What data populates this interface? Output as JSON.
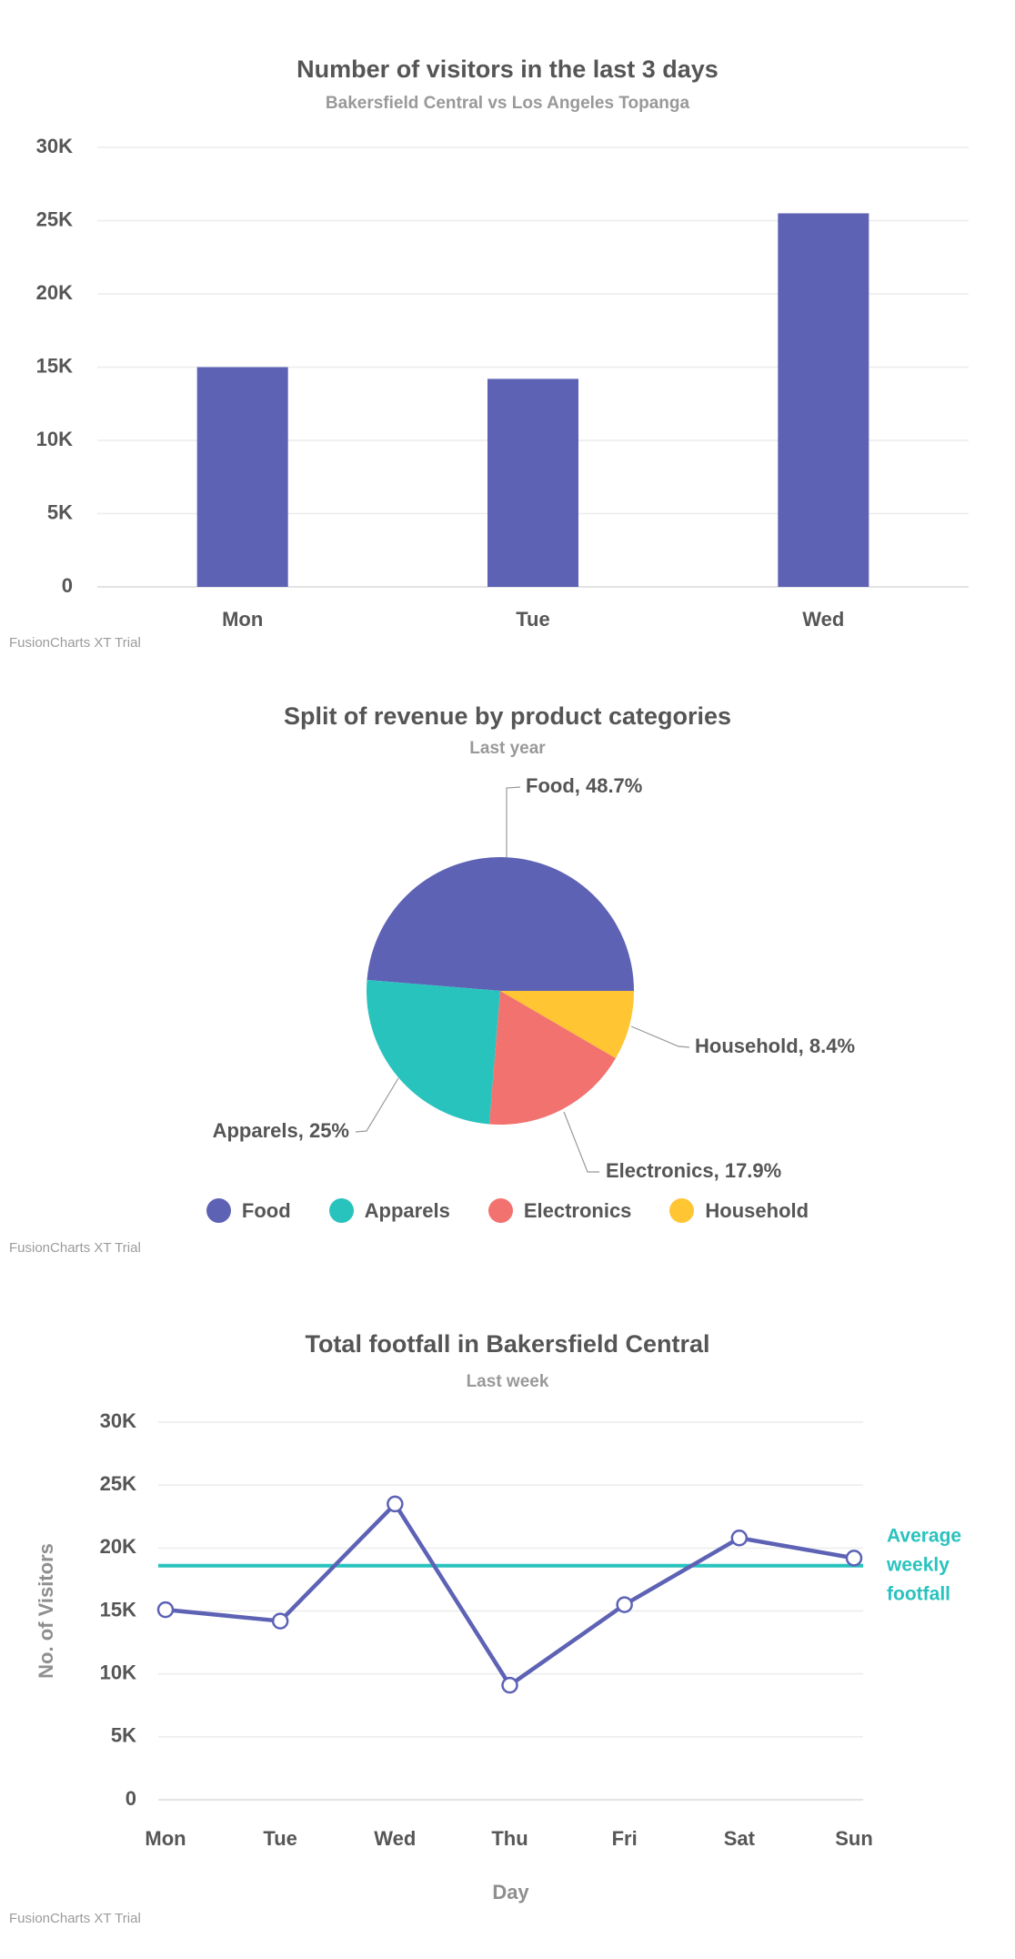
{
  "trial_label": "FusionCharts XT Trial",
  "colors": {
    "accent_purple": "#5D62B5",
    "accent_teal": "#29C3BE",
    "accent_coral": "#F2726F",
    "accent_yellow": "#FFC533",
    "title_gray": "#555555",
    "subtitle_gray": "#999999",
    "tick_gray": "#565656",
    "axis_name_gray": "#8f8f8f",
    "gridline": "#ececec",
    "zero_line": "#dcdcdc",
    "connector_gray": "#999999"
  },
  "chart_data": [
    {
      "type": "bar",
      "title": "Number of visitors in the last 3 days",
      "subtitle": "Bakersfield Central vs Los Angeles Topanga",
      "categories": [
        "Mon",
        "Tue",
        "Wed"
      ],
      "values": [
        15000,
        14200,
        25500
      ],
      "xlabel": "",
      "ylabel": "",
      "ylim": [
        0,
        30000
      ],
      "ytick_step": 5000,
      "ytick_labels": [
        "0",
        "5K",
        "10K",
        "15K",
        "20K",
        "25K",
        "30K"
      ],
      "grid": true,
      "bar_color": "#5D62B5"
    },
    {
      "type": "pie",
      "title": "Split of revenue by product categories",
      "subtitle": "Last year",
      "slices": [
        {
          "label": "Food",
          "value": 48.7,
          "color": "#5D62B5",
          "callout": "Food, 48.7%"
        },
        {
          "label": "Apparels",
          "value": 25,
          "color": "#29C3BE",
          "callout": "Apparels, 25%"
        },
        {
          "label": "Electronics",
          "value": 17.9,
          "color": "#F2726F",
          "callout": "Electronics, 17.9%"
        },
        {
          "label": "Household",
          "value": 8.4,
          "color": "#FFC533",
          "callout": "Household, 8.4%"
        }
      ],
      "legend_position": "bottom",
      "legend": [
        "Food",
        "Apparels",
        "Electronics",
        "Household"
      ]
    },
    {
      "type": "line",
      "title": "Total footfall in Bakersfield Central",
      "subtitle": "Last week",
      "categories": [
        "Mon",
        "Tue",
        "Wed",
        "Thu",
        "Fri",
        "Sat",
        "Sun"
      ],
      "values": [
        15100,
        14200,
        23500,
        9100,
        15500,
        20800,
        19200
      ],
      "xlabel": "Day",
      "ylabel": "No. of Visitors",
      "ylim": [
        0,
        30000
      ],
      "ytick_step": 5000,
      "ytick_labels": [
        "0",
        "5K",
        "10K",
        "15K",
        "20K",
        "25K",
        "30K"
      ],
      "grid": true,
      "line_color": "#5D62B5",
      "trendline": {
        "value": 18600,
        "label": "Average weekly footfall",
        "color": "#29C3BE"
      }
    }
  ]
}
